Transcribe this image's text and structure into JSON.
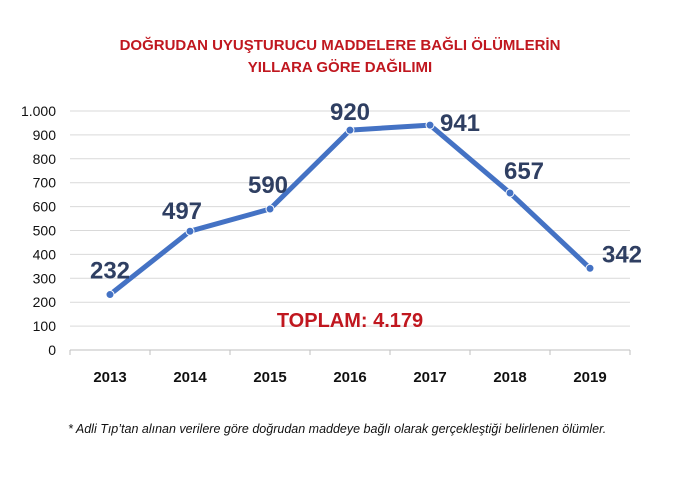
{
  "chart_data": {
    "type": "line",
    "title": "DOĞRUDAN UYUŞTURUCU MADDELERE BAĞLI ÖLÜMLERİN",
    "subtitle": "YILLARA GÖRE DAĞILIMI",
    "categories": [
      "2013",
      "2014",
      "2015",
      "2016",
      "2017",
      "2018",
      "2019"
    ],
    "values": [
      232,
      497,
      590,
      920,
      941,
      657,
      342
    ],
    "value_labels": [
      "232",
      "497",
      "590",
      "920",
      "941",
      "657",
      "342"
    ],
    "ylim": [
      0,
      1000
    ],
    "yticks": [
      0,
      100,
      200,
      300,
      400,
      500,
      600,
      700,
      800,
      900,
      1000
    ],
    "ytick_labels": [
      "0",
      "100",
      "200",
      "300",
      "400",
      "500",
      "600",
      "700",
      "800",
      "900",
      "1.000"
    ],
    "grid": true,
    "line_color": "#4472c4",
    "annotation": "TOPLAM: 4.179",
    "annotation_color": "#c0171f"
  },
  "footnote": "* Adli Tıp’tan alınan verilere göre doğrudan maddeye bağlı olarak gerçekleştiği belirlenen ölümler."
}
